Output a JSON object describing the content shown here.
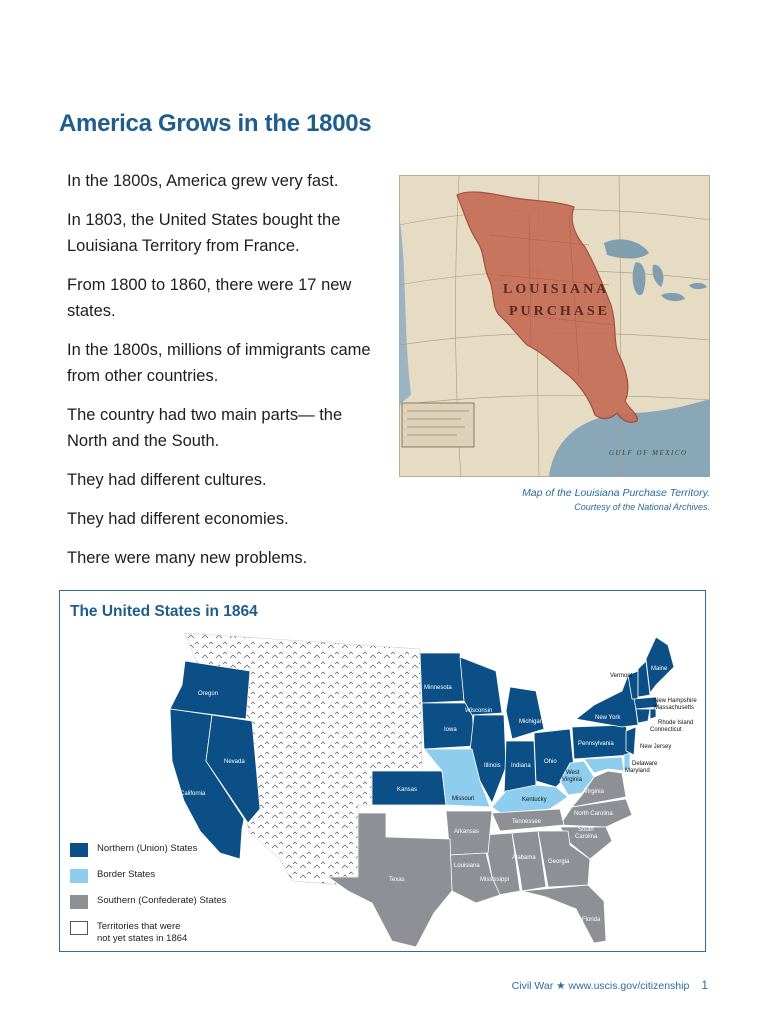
{
  "page": {
    "title": "America Grows in the 1800s",
    "paragraphs": [
      "In the 1800s, America grew very fast.",
      "In 1803, the United States bought the Louisiana Territory from France.",
      "From 1800 to 1860, there were 17 new states.",
      "In the 1800s, millions of immigrants came from other countries.",
      "The country had two main parts— the North and the South.",
      "They had different cultures.",
      "They had different economies.",
      "There were many new problems."
    ]
  },
  "photo": {
    "labels": {
      "louisiana": "LOUISIANA",
      "purchase": "PURCHASE",
      "gulf": "GULF OF MEXICO"
    },
    "caption_line1": "Map of the Louisiana Purchase Territory.",
    "caption_line2": "Courtesy of the National Archives."
  },
  "us_map": {
    "title": "The United States in 1864",
    "colors": {
      "union": "#0b4f86",
      "border": "#8ecdee",
      "confederate": "#8f9096",
      "territory": "#ffffff"
    },
    "states": {
      "oregon": "Oregon",
      "nevada": "Nevada",
      "california": "California",
      "kansas": "Kansas",
      "minnesota": "Minnesota",
      "iowa": "Iowa",
      "wisconsin": "Wisconsin",
      "illinois": "Illinois",
      "michigan": "Michigan",
      "indiana": "Indiana",
      "ohio": "Ohio",
      "pennsylvania": "Pennsylvania",
      "new_york": "New York",
      "vermont": "Vermont",
      "maine": "Maine",
      "new_hampshire": "New Hampshire",
      "massachusetts": "Massachusetts",
      "rhode_island": "Rhode Island",
      "connecticut": "Connecticut",
      "new_jersey": "New Jersey",
      "delaware": "Delaware",
      "maryland": "Maryland",
      "west_virginia_1": "West",
      "west_virginia_2": "Virginia",
      "missouri": "Missouri",
      "kentucky": "Kentucky",
      "virginia": "Virginia",
      "north_carolina": "North Carolina",
      "south_carolina_1": "South",
      "south_carolina_2": "Carolina",
      "tennessee": "Tennessee",
      "arkansas": "Arkansas",
      "georgia": "Georgia",
      "alabama": "Alabama",
      "mississippi": "Mississippi",
      "louisiana": "Louisiana",
      "texas": "Texas",
      "florida": "Florida"
    },
    "legend": [
      {
        "label": "Northern (Union) States"
      },
      {
        "label": "Border States"
      },
      {
        "label": "Southern (Confederate) States"
      },
      {
        "label_line1": "Territories that were",
        "label_line2": "not yet states in 1864"
      }
    ]
  },
  "footer": {
    "text": "Civil War ★ www.uscis.gov/citizenship",
    "page_number": "1"
  }
}
